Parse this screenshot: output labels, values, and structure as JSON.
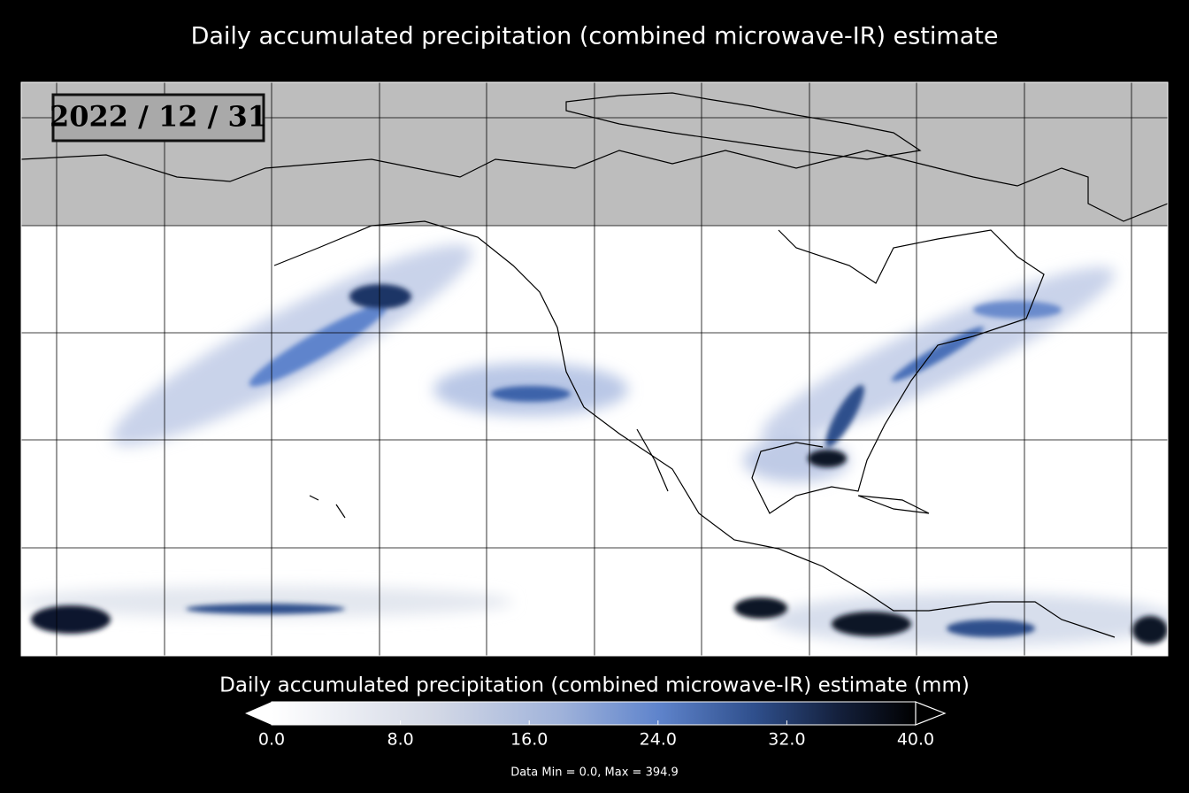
{
  "title": "Daily accumulated precipitation (combined microwave-IR) estimate",
  "date": "2022 / 12 / 31",
  "colorbar": {
    "title": "Daily accumulated precipitation (combined microwave-IR) estimate (mm)",
    "lim": [
      0,
      40
    ],
    "ticks": [
      {
        "value": 0,
        "label": "0.0"
      },
      {
        "value": 8,
        "label": "8.0"
      },
      {
        "value": 16,
        "label": "16.0"
      },
      {
        "value": 24,
        "label": "24.0"
      },
      {
        "value": 32,
        "label": "32.0"
      },
      {
        "value": 40,
        "label": "40.0"
      }
    ]
  },
  "stats": "Data Min = 0.0, Max = 394.9"
}
